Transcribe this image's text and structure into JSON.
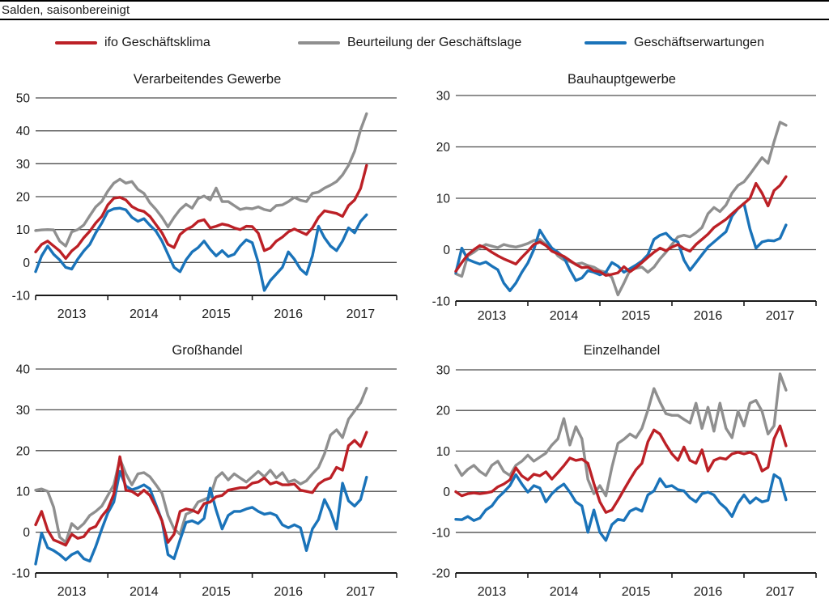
{
  "page": {
    "top_label": "Salden, saisonbereinigt"
  },
  "colors": {
    "klima_red": "#bc2026",
    "lage_gray": "#8f8f8f",
    "erwartungen_blue": "#1a73b9",
    "grid": "#4d4d4d",
    "axis": "#1a1a1a",
    "rule": "#000000"
  },
  "legend": {
    "items": [
      {
        "label": "ifo Geschäftsklima",
        "color": "#bc2026"
      },
      {
        "label": "Beurteilung der Geschäftslage",
        "color": "#8f8f8f"
      },
      {
        "label": "Geschäftserwartungen",
        "color": "#1a73b9"
      }
    ]
  },
  "chart_data": [
    {
      "type": "line",
      "title": "Verarbeitendes Gewerbe",
      "x_start": "2012-07",
      "x_end": "2017-02",
      "frequency": "monthly",
      "x_axis_years": [
        "2013",
        "2014",
        "2015",
        "2016",
        "2017"
      ],
      "ylim": [
        -10,
        50
      ],
      "yticks": [
        50,
        40,
        30,
        20,
        10,
        0,
        -10
      ],
      "grid": true,
      "legend_position": "top-shared",
      "series": [
        {
          "name": "ifo Geschäftsklima",
          "color": "#bc2026",
          "values": [
            3.2,
            5.5,
            6.5,
            5,
            3.5,
            1.2,
            3.5,
            5,
            7.5,
            9.5,
            12,
            14,
            17.5,
            19.5,
            19.8,
            19,
            17,
            16,
            15.5,
            14,
            11.5,
            9,
            5.5,
            4.5,
            8.5,
            10,
            10.9,
            12.5,
            13,
            10.5,
            11,
            11.7,
            11.3,
            10.5,
            10,
            11,
            10.9,
            8.9,
            3.6,
            4.4,
            6.5,
            7.7,
            9.3,
            10.2,
            9.3,
            8.5,
            10.5,
            13.7,
            15.7,
            15.3,
            14.9,
            14,
            17.3,
            19,
            22.5,
            29.5
          ]
        },
        {
          "name": "Beurteilung der Geschäftslage",
          "color": "#8f8f8f",
          "values": [
            9.7,
            9.9,
            10,
            9.9,
            6.5,
            5,
            9.3,
            10,
            11.4,
            14.2,
            16.9,
            18.6,
            21.7,
            24.1,
            25.3,
            24.1,
            24.6,
            22.2,
            21,
            18.1,
            16.1,
            13.7,
            10.8,
            13.7,
            16.1,
            17.7,
            16.5,
            19.4,
            20.2,
            19,
            22.6,
            18.5,
            18.5,
            17.3,
            16.1,
            16.5,
            16.3,
            16.9,
            16.1,
            15.7,
            17.3,
            17.5,
            18.5,
            19.8,
            18.9,
            18.5,
            21,
            21.4,
            22.6,
            23.5,
            24.6,
            26.6,
            29.5,
            33.8,
            40.3,
            45.2
          ]
        },
        {
          "name": "Geschäftserwartungen",
          "color": "#1a73b9",
          "values": [
            -2.8,
            2,
            5,
            2.5,
            0.8,
            -1.5,
            -2,
            1,
            3.5,
            5.5,
            9,
            12,
            15.5,
            16.3,
            16.5,
            16,
            13.7,
            12.5,
            13.3,
            11.3,
            9.5,
            6.5,
            2.5,
            -1.5,
            -2.8,
            0.8,
            3.2,
            4.5,
            6.5,
            4,
            2,
            3.6,
            1.8,
            2.5,
            5,
            6.9,
            6,
            0,
            -8.5,
            -5.5,
            -3.5,
            -1.5,
            3.2,
            1,
            -2,
            -3.6,
            2,
            11,
            7.5,
            5,
            3.6,
            6.5,
            10.5,
            9,
            12.5,
            14.5
          ]
        }
      ]
    },
    {
      "type": "line",
      "title": "Bauhauptgewerbe",
      "x_start": "2012-07",
      "x_end": "2017-02",
      "frequency": "monthly",
      "x_axis_years": [
        "2013",
        "2014",
        "2015",
        "2016",
        "2017"
      ],
      "ylim": [
        -10,
        30
      ],
      "yticks": [
        30,
        20,
        10,
        0,
        -10
      ],
      "grid": true,
      "legend_position": "top-shared",
      "series": [
        {
          "name": "ifo Geschäftsklima",
          "color": "#bc2026",
          "values": [
            -4.2,
            -2.5,
            -1,
            0,
            0.8,
            0.3,
            -0.5,
            -1.2,
            -1.8,
            -2.3,
            -2.8,
            -1.5,
            -0.3,
            1,
            1.5,
            0.8,
            -0.3,
            -0.8,
            -1.3,
            -2.1,
            -2.9,
            -3.5,
            -3.4,
            -4.1,
            -4.3,
            -5,
            -4.8,
            -4.5,
            -3.3,
            -4.3,
            -3.5,
            -2.5,
            -1.5,
            -0.5,
            0.3,
            -0.2,
            0.5,
            1,
            0.2,
            -0.3,
            1,
            2,
            3,
            4.3,
            5.1,
            5.9,
            7,
            8,
            9,
            10,
            12.9,
            11,
            8.5,
            11.5,
            12.5,
            14.2
          ]
        },
        {
          "name": "Beurteilung der Geschäftslage",
          "color": "#8f8f8f",
          "values": [
            -4.7,
            -5.2,
            -1.2,
            -0.5,
            0.4,
            1,
            0.7,
            0.4,
            1,
            0.7,
            0.5,
            0.8,
            1.2,
            1.8,
            2,
            1,
            0.3,
            -1.2,
            -2,
            -2.3,
            -2.8,
            -2.6,
            -3.1,
            -3.4,
            -4.1,
            -4.4,
            -5.4,
            -8.8,
            -6.5,
            -4,
            -3.6,
            -3.4,
            -4.4,
            -3.4,
            -1.8,
            -0.5,
            1,
            2.5,
            2.8,
            2.5,
            3.3,
            4.3,
            7,
            8.2,
            7.4,
            8.7,
            11,
            12.5,
            13.2,
            14.7,
            16.3,
            17.9,
            16.8,
            21,
            24.8,
            24.2
          ]
        },
        {
          "name": "Geschäftserwartungen",
          "color": "#1a73b9",
          "values": [
            -4.5,
            0.3,
            -1.9,
            -2.4,
            -2.8,
            -2.4,
            -3.2,
            -3.9,
            -6.5,
            -8,
            -6.5,
            -4.4,
            -2.6,
            0,
            3.8,
            1.9,
            0.3,
            -0.5,
            -1.5,
            -3.9,
            -6,
            -5.5,
            -4.1,
            -4.4,
            -4.9,
            -4.4,
            -2.5,
            -3.2,
            -4.4,
            -3.7,
            -3,
            -2.2,
            -1,
            2,
            2.8,
            3.2,
            2,
            1.5,
            -2,
            -4,
            -2.5,
            -1,
            0.5,
            1.5,
            2.5,
            3.5,
            6.5,
            8,
            9,
            4,
            0.3,
            1.5,
            1.8,
            1.7,
            2.2,
            4.8
          ]
        }
      ]
    },
    {
      "type": "line",
      "title": "Großhandel",
      "x_start": "2012-07",
      "x_end": "2017-02",
      "frequency": "monthly",
      "x_axis_years": [
        "2013",
        "2014",
        "2015",
        "2016",
        "2017"
      ],
      "ylim": [
        -10,
        40
      ],
      "yticks": [
        40,
        30,
        20,
        10,
        0,
        -10
      ],
      "grid": true,
      "legend_position": "top-shared",
      "series": [
        {
          "name": "ifo Geschäftsklima",
          "color": "#bc2026",
          "values": [
            1.8,
            5.1,
            0.5,
            -1.9,
            -2.5,
            -3.2,
            -0.5,
            -1.5,
            -1.1,
            0.8,
            1.4,
            3.9,
            5.7,
            9.3,
            18.5,
            10.3,
            10,
            9,
            10.3,
            9,
            6.1,
            2.8,
            -2.5,
            -0.5,
            5.1,
            5.7,
            5.4,
            4.7,
            7,
            7.4,
            8.7,
            9,
            10.3,
            10.6,
            10.9,
            10.9,
            12,
            12.3,
            13.3,
            11.8,
            12.3,
            11.6,
            11.6,
            11.8,
            10.3,
            10,
            9.7,
            11.8,
            12.8,
            13.3,
            15.9,
            15.2,
            21.2,
            22.5,
            21,
            24.5
          ]
        },
        {
          "name": "Beurteilung der Geschäftslage",
          "color": "#8f8f8f",
          "values": [
            10.3,
            10.6,
            10,
            6.1,
            -1.2,
            -2.5,
            2.1,
            0.8,
            2.1,
            4.1,
            5.1,
            6.4,
            9,
            11.6,
            18,
            14.3,
            11.6,
            14.3,
            14.6,
            13.6,
            11.6,
            9.5,
            4.1,
            0.8,
            -0.5,
            4.4,
            5.1,
            7.4,
            8,
            8.7,
            13.3,
            14.6,
            12.8,
            14.3,
            13.3,
            12.3,
            13.6,
            14.9,
            13.6,
            15.2,
            13.3,
            14.6,
            12.3,
            12.8,
            11.8,
            12.6,
            14.3,
            15.9,
            19.2,
            23.8,
            25.1,
            23.2,
            27.7,
            29.7,
            31.7,
            35.3
          ]
        },
        {
          "name": "Geschäftserwartungen",
          "color": "#1a73b9",
          "values": [
            -7.8,
            -0.2,
            -3.8,
            -4.5,
            -5.5,
            -6.8,
            -5.5,
            -4.8,
            -6.5,
            -7.1,
            -3.5,
            0.8,
            4.7,
            7.4,
            14.9,
            11.3,
            10.4,
            10.9,
            11.6,
            10.6,
            6.7,
            2.8,
            -5.5,
            -6.5,
            -1.9,
            2.4,
            2.8,
            2.1,
            3.4,
            10.8,
            5.4,
            0.8,
            4.1,
            5.1,
            5.1,
            5.7,
            6.1,
            5.1,
            4.4,
            4.7,
            4.1,
            1.8,
            1.1,
            1.8,
            1.1,
            -4.5,
            0.8,
            3.1,
            8,
            5.1,
            0.8,
            12,
            7.7,
            6.4,
            8,
            13.5
          ]
        }
      ]
    },
    {
      "type": "line",
      "title": "Einzelhandel",
      "x_start": "2012-07",
      "x_end": "2017-02",
      "frequency": "monthly",
      "x_axis_years": [
        "2013",
        "2014",
        "2015",
        "2016",
        "2017"
      ],
      "ylim": [
        -20,
        30
      ],
      "yticks": [
        30,
        20,
        10,
        0,
        -10,
        -20
      ],
      "grid": true,
      "legend_position": "top-shared",
      "series": [
        {
          "name": "ifo Geschäftsklima",
          "color": "#bc2026",
          "values": [
            0,
            -1,
            -0.5,
            -0.3,
            -0.5,
            -0.3,
            0,
            1.2,
            1.9,
            2.9,
            5.9,
            3.9,
            2.9,
            4.3,
            3.9,
            4.9,
            3.1,
            4.7,
            6.4,
            8.3,
            7.7,
            8,
            7,
            2,
            -2.5,
            -5.1,
            -4.5,
            -2.1,
            0.5,
            3,
            5.4,
            7,
            12.3,
            15.2,
            14.2,
            11.6,
            9.3,
            7.7,
            11,
            7.7,
            7,
            10.3,
            5.1,
            7.7,
            8.3,
            8,
            9.3,
            9.7,
            9.3,
            9.7,
            9,
            5.1,
            6,
            13,
            16.2,
            11.3
          ]
        },
        {
          "name": "Beurteilung der Geschäftslage",
          "color": "#8f8f8f",
          "values": [
            6.5,
            4,
            5.5,
            6.5,
            5,
            4,
            6.5,
            7.5,
            5,
            4,
            6.5,
            7.5,
            9,
            7.5,
            8.5,
            9.5,
            11.5,
            13,
            18,
            11.5,
            16,
            13,
            3,
            -0.5,
            1.5,
            -1,
            6,
            11.9,
            12.9,
            14.2,
            13.3,
            15.6,
            20.1,
            25.4,
            22.1,
            19.2,
            18.8,
            18.8,
            17.8,
            16.9,
            21.8,
            15.6,
            20.8,
            14.9,
            21.8,
            15.6,
            13.3,
            19.8,
            16.2,
            21.8,
            22.5,
            19.8,
            14.2,
            16.2,
            29,
            25
          ]
        },
        {
          "name": "Geschäftserwartungen",
          "color": "#1a73b9",
          "values": [
            -6.8,
            -6.9,
            -6.1,
            -7.1,
            -6.5,
            -4.5,
            -3.5,
            -1.5,
            -0.1,
            1.5,
            4.2,
            1.9,
            -0.1,
            1.5,
            0.9,
            -2.5,
            -0.5,
            0.9,
            1.9,
            -0.1,
            -2.5,
            -3.5,
            -10,
            -4.5,
            -10,
            -12,
            -8.1,
            -6.8,
            -7.1,
            -4.8,
            -4.1,
            -4.8,
            -0.8,
            0.2,
            3.2,
            1.2,
            1.5,
            0.5,
            0.2,
            -1.5,
            -2.5,
            -0.5,
            -0.1,
            -0.8,
            -2.8,
            -4.1,
            -6.1,
            -2.8,
            -0.8,
            -2.8,
            -1.5,
            -2.5,
            -2.1,
            4.2,
            3.2,
            -2
          ]
        }
      ]
    }
  ]
}
